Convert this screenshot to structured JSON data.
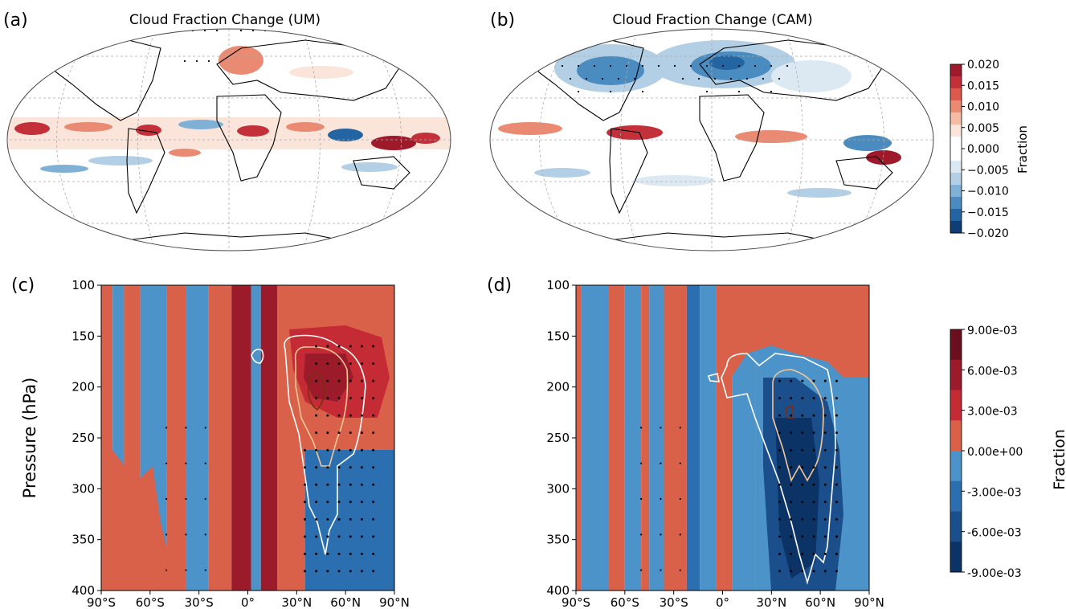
{
  "panels": {
    "a": {
      "label": "(a)",
      "title": "Cloud Fraction Change (UM)"
    },
    "b": {
      "label": "(b)",
      "title": "Cloud Fraction Change (CAM)"
    },
    "c": {
      "label": "(c)"
    },
    "d": {
      "label": "(d)"
    }
  },
  "colorbar_top": {
    "label": "Fraction",
    "ticks": [
      "0.020",
      "0.015",
      "0.010",
      "0.005",
      "0.000",
      "−0.005",
      "−0.010",
      "−0.015",
      "−0.020"
    ],
    "colors": [
      "#9e1a2b",
      "#c4303a",
      "#db5a4d",
      "#eb8a72",
      "#f5bca5",
      "#fbe4da",
      "#ffffff",
      "#ffffff",
      "#dde9f2",
      "#b3cfe5",
      "#7fb0d6",
      "#4b8cc0",
      "#2365a3",
      "#0e3e73"
    ]
  },
  "colorbar_bottom": {
    "label": "Fraction",
    "ticks": [
      "9.00e-03",
      "6.00e-03",
      "3.00e-03",
      "0.00e+00",
      "-3.00e-03",
      "-6.00e-03",
      "-9.00e-03"
    ],
    "colors": [
      "#6b0f1f",
      "#9b1b2b",
      "#c42b34",
      "#d96049",
      "#4b93c8",
      "#2c6fb0",
      "#1a4f8c",
      "#0c3366"
    ]
  },
  "chart_data": [
    {
      "type": "heatmap",
      "panel": "c",
      "ylabel": "Pressure (hPa)",
      "x_ticks": [
        "90°S",
        "60°S",
        "30°S",
        "0°",
        "30°N",
        "60°N",
        "90°N"
      ],
      "y_ticks": [
        "100",
        "150",
        "200",
        "250",
        "300",
        "350",
        "400"
      ],
      "xlim": [
        -90,
        90
      ],
      "ylim": [
        400,
        100
      ],
      "columns": [
        {
          "lat_start": -90,
          "lat_end": -83,
          "value": 0.0015
        },
        {
          "lat_start": -83,
          "lat_end": -76,
          "value": -0.0015
        },
        {
          "lat_start": -76,
          "lat_end": -66,
          "value": 0.0015
        },
        {
          "lat_start": -66,
          "lat_end": -50,
          "value": -0.0015
        },
        {
          "lat_start": -50,
          "lat_end": -38,
          "value": 0.0015
        },
        {
          "lat_start": -38,
          "lat_end": -24,
          "value": -0.0015
        },
        {
          "lat_start": -24,
          "lat_end": -10,
          "value": 0.0015
        },
        {
          "lat_start": -10,
          "lat_end": 2,
          "value": 0.0045
        },
        {
          "lat_start": 2,
          "lat_end": 8,
          "value": -0.0015
        },
        {
          "lat_start": 8,
          "lat_end": 18,
          "value": 0.0045
        },
        {
          "lat_start": 18,
          "lat_end": 90,
          "value": 0.0015
        }
      ]
    },
    {
      "type": "heatmap",
      "panel": "d",
      "x_ticks": [
        "90°S",
        "60°S",
        "30°S",
        "0°",
        "30°N",
        "60°N",
        "90°N"
      ],
      "y_ticks": [
        "100",
        "150",
        "200",
        "250",
        "300",
        "350",
        "400"
      ],
      "xlim": [
        -90,
        90
      ],
      "ylim": [
        400,
        100
      ],
      "columns": [
        {
          "lat_start": -90,
          "lat_end": -87,
          "value": 0.0015
        },
        {
          "lat_start": -87,
          "lat_end": -70,
          "value": -0.0015
        },
        {
          "lat_start": -70,
          "lat_end": -60,
          "value": 0.0015
        },
        {
          "lat_start": -60,
          "lat_end": -50,
          "value": -0.0015
        },
        {
          "lat_start": -50,
          "lat_end": -45,
          "value": 0.0015
        },
        {
          "lat_start": -45,
          "lat_end": -36,
          "value": -0.0015
        },
        {
          "lat_start": -36,
          "lat_end": -22,
          "value": 0.0015
        },
        {
          "lat_start": -22,
          "lat_end": -14,
          "value": -0.0045
        },
        {
          "lat_start": -14,
          "lat_end": -4,
          "value": -0.0015
        },
        {
          "lat_start": -4,
          "lat_end": 6,
          "value": 0.0015
        },
        {
          "lat_start": 6,
          "lat_end": 20,
          "value": -0.0015
        },
        {
          "lat_start": 20,
          "lat_end": 90,
          "value": -0.0015
        }
      ]
    }
  ]
}
